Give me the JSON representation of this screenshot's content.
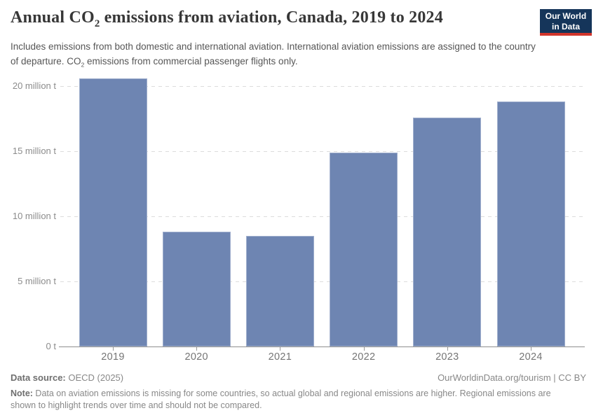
{
  "header": {
    "title": {
      "pre": "Annual CO",
      "sub": "2",
      "post": " emissions from aviation, Canada, 2019 to 2024"
    },
    "logo": {
      "line1": "Our World",
      "line2": "in Data"
    }
  },
  "subtitle": {
    "pre": "Includes emissions from both domestic and international aviation. International aviation emissions are assigned to the country of departure. CO",
    "sub": "2",
    "post": " emissions from commercial passenger flights only."
  },
  "chart_data": {
    "type": "bar",
    "title": "Annual CO₂ emissions from aviation, Canada, 2019 to 2024",
    "categories": [
      "2019",
      "2020",
      "2021",
      "2022",
      "2023",
      "2024"
    ],
    "values": [
      20.6,
      8.8,
      8.5,
      14.9,
      17.6,
      18.8
    ],
    "unit": "million tonnes CO2",
    "xlabel": "",
    "ylabel": "",
    "ylim": [
      0,
      21
    ],
    "grid": "horizontal-dashed",
    "legend_position": "none",
    "yticks": [
      {
        "value": 0,
        "label": "0 t"
      },
      {
        "value": 5,
        "label": "5 million t"
      },
      {
        "value": 10,
        "label": "10 million t"
      },
      {
        "value": 15,
        "label": "15 million t"
      },
      {
        "value": 20,
        "label": "20 million t"
      }
    ]
  },
  "colors": {
    "bar": "#6e85b2",
    "gridline": "#dddddd",
    "axis": "#8f8f8f",
    "title_text": "#373737",
    "subtitle_text": "#565656",
    "logo_bg": "#15355a",
    "logo_accent": "#d1352b"
  },
  "footer": {
    "datasource_label": "Data source:",
    "datasource_value": " OECD (2025)",
    "attribution": "OurWorldinData.org/tourism | CC BY",
    "note_label": "Note:",
    "note_value": " Data on aviation emissions is missing for some countries, so actual global and regional emissions are higher. Regional emissions are shown to highlight trends over time and should not be compared."
  }
}
